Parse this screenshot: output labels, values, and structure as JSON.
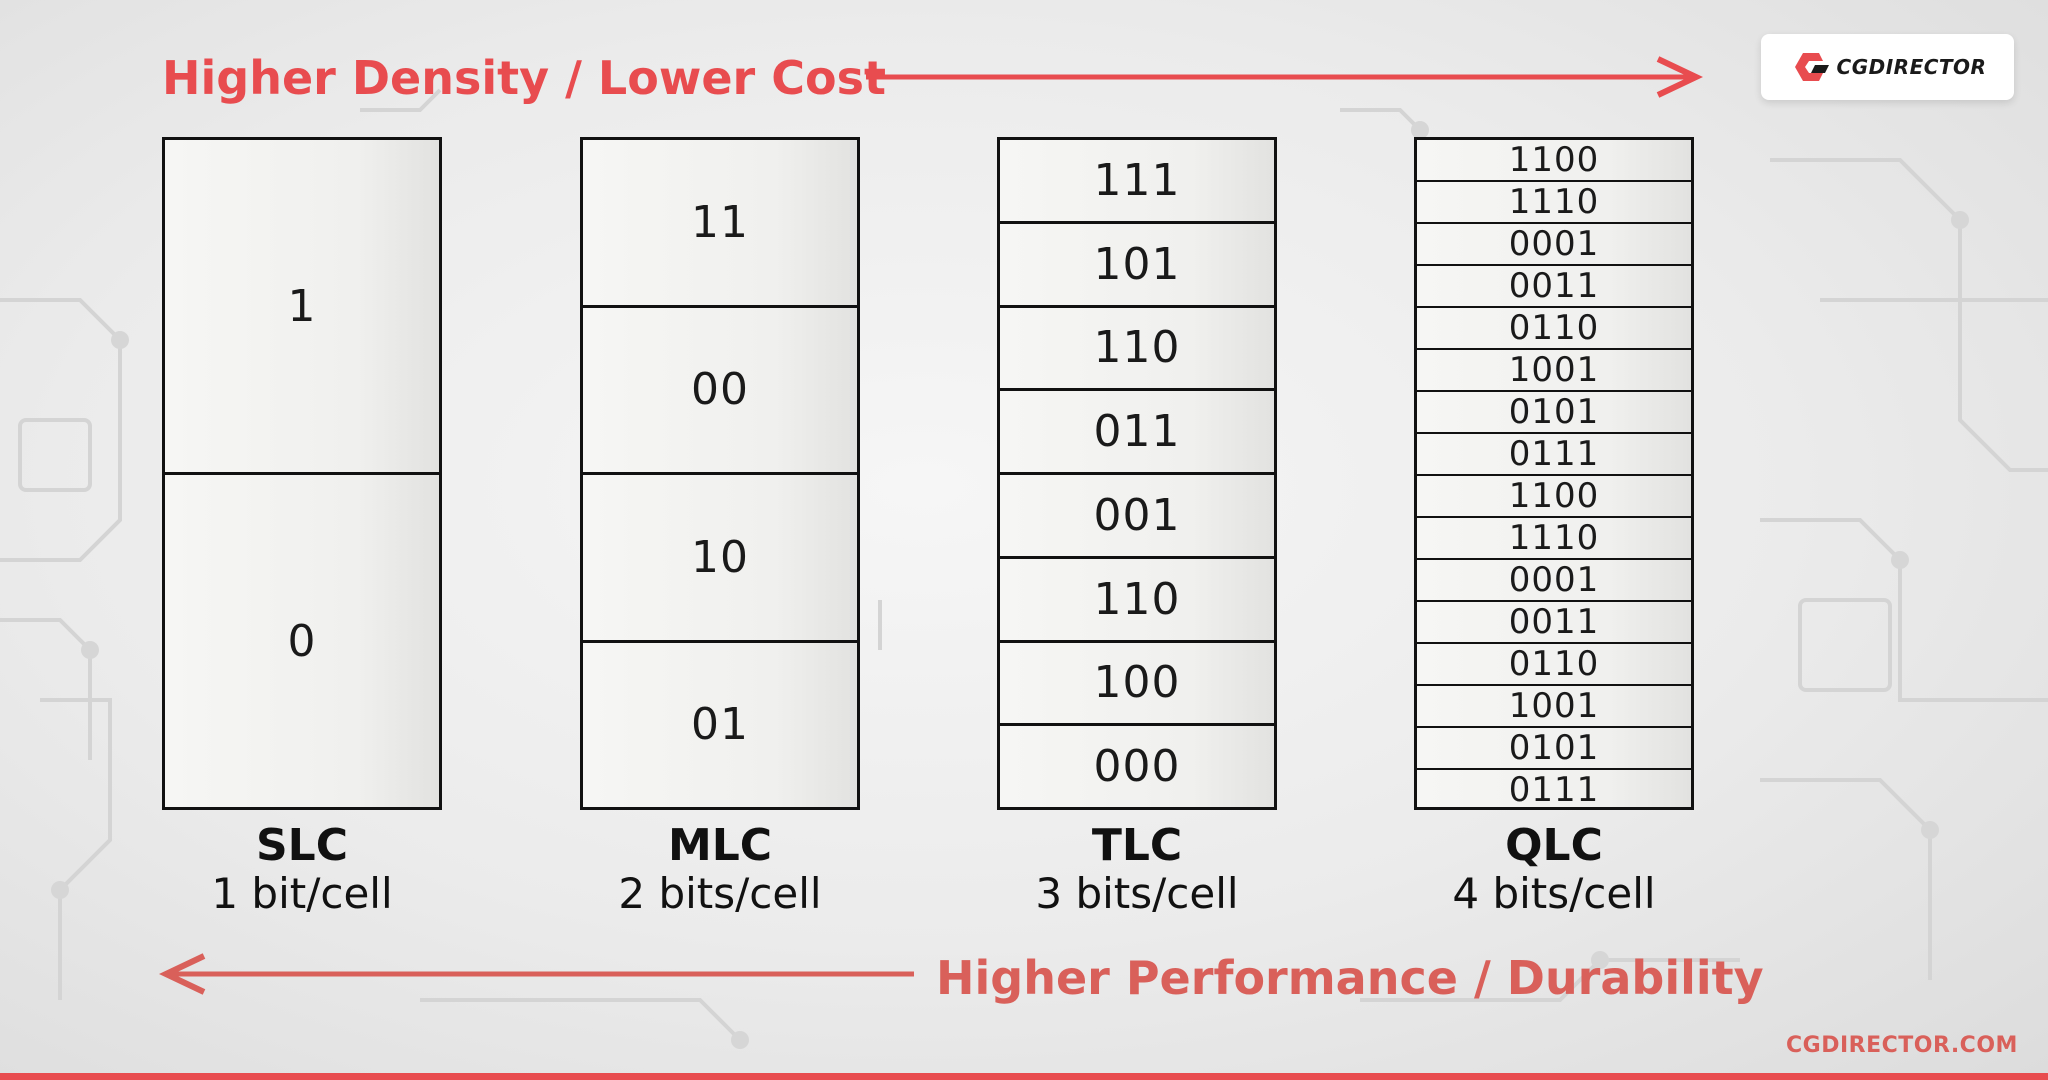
{
  "top_arrow": {
    "label": "Higher Density / Lower Cost",
    "color": "#e84c4f"
  },
  "bottom_arrow": {
    "label": "Higher Performance / Durability",
    "color": "#d9605a"
  },
  "logo": {
    "text": "CGDIRECTOR",
    "icon": "cgdirector-logo-icon"
  },
  "columns": [
    {
      "name": "SLC",
      "bits": "1 bit/cell",
      "cells": [
        "1",
        "0"
      ]
    },
    {
      "name": "MLC",
      "bits": "2 bits/cell",
      "cells": [
        "11",
        "00",
        "10",
        "01"
      ]
    },
    {
      "name": "TLC",
      "bits": "3 bits/cell",
      "cells": [
        "111",
        "101",
        "110",
        "011",
        "001",
        "110",
        "100",
        "000"
      ]
    },
    {
      "name": "QLC",
      "bits": "4 bits/cell",
      "cells": [
        "1100",
        "1110",
        "0001",
        "0011",
        "0110",
        "1001",
        "0101",
        "0111",
        "1100",
        "1110",
        "0001",
        "0011",
        "0110",
        "1001",
        "0101",
        "0111"
      ]
    }
  ],
  "footer": {
    "site": "CGDIRECTOR.COM"
  }
}
